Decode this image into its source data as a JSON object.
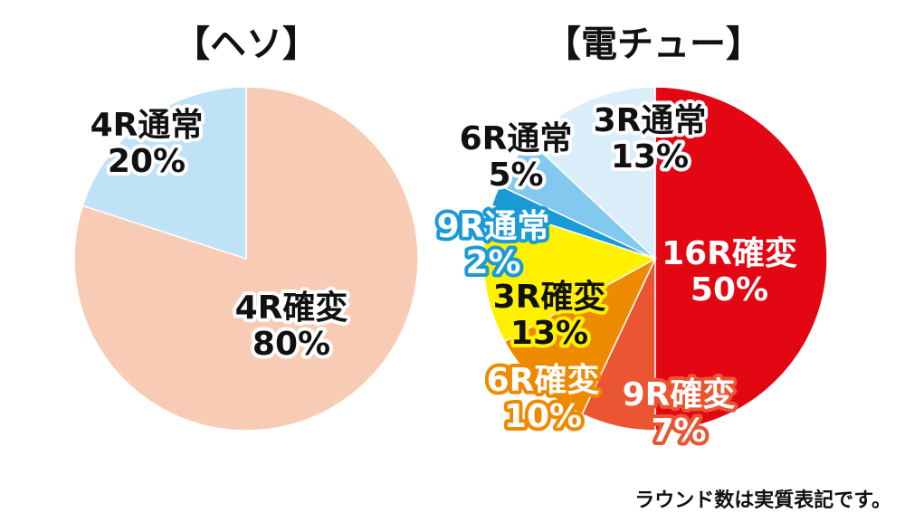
{
  "chart_data": [
    {
      "type": "pie",
      "title": "【ヘソ】",
      "slices": [
        {
          "label": "4R確変",
          "value": 80,
          "value_label": "80%",
          "color": "#f8ccb4",
          "text_color": "#111111",
          "outline_color": "#ffffff"
        },
        {
          "label": "4R通常",
          "value": 20,
          "value_label": "20%",
          "color": "#bfe2f6",
          "text_color": "#111111",
          "outline_color": "#ffffff"
        }
      ]
    },
    {
      "type": "pie",
      "title": "【電チュー】",
      "slices": [
        {
          "label": "16R確変",
          "value": 50,
          "value_label": "50%",
          "color": "#e30613",
          "text_color": "#ffffff",
          "outline_color": "#e30613"
        },
        {
          "label": "9R確変",
          "value": 7,
          "value_label": "7%",
          "color": "#ea5532",
          "text_color": "#ffffff",
          "outline_color": "#ea5532"
        },
        {
          "label": "6R確変",
          "value": 10,
          "value_label": "10%",
          "color": "#ee8a00",
          "text_color": "#ffffff",
          "outline_color": "#ee8a00"
        },
        {
          "label": "3R確変",
          "value": 13,
          "value_label": "13%",
          "color": "#fff100",
          "text_color": "#111111",
          "outline_color": "#fff100"
        },
        {
          "label": "9R通常",
          "value": 2,
          "value_label": "2%",
          "color": "#1a9ad6",
          "text_color": "#ffffff",
          "outline_color": "#1a9ad6"
        },
        {
          "label": "6R通常",
          "value": 5,
          "value_label": "5%",
          "color": "#83c8ee",
          "text_color": "#111111",
          "outline_color": "#ffffff"
        },
        {
          "label": "3R通常",
          "value": 13,
          "value_label": "13%",
          "color": "#daeefa",
          "text_color": "#111111",
          "outline_color": "#ffffff"
        }
      ]
    }
  ],
  "footnote": "ラウンド数は実質表記です。"
}
